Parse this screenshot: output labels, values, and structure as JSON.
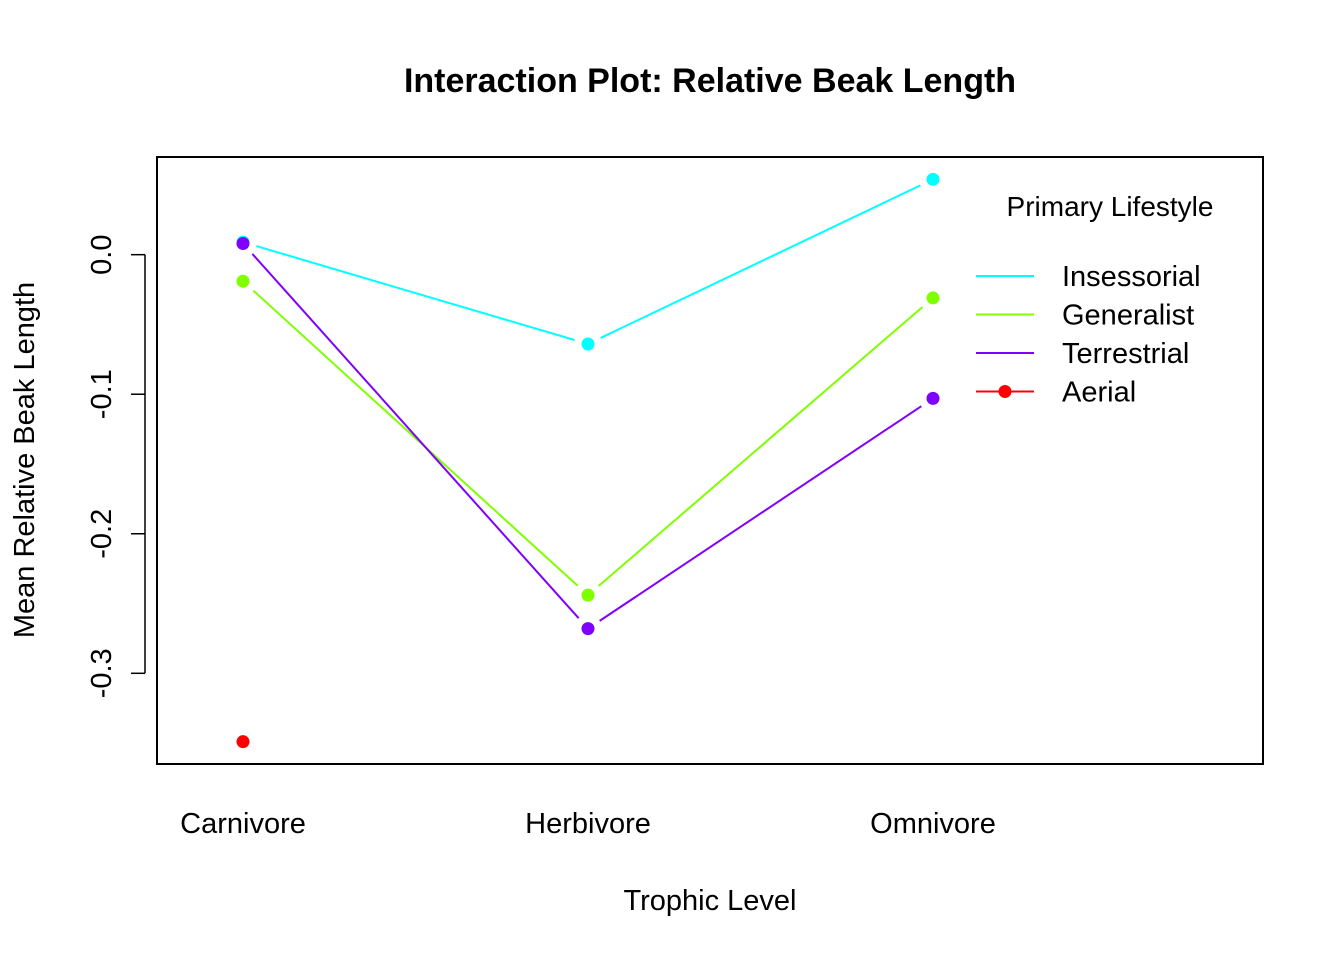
{
  "chart_data": {
    "type": "line",
    "title": "Interaction Plot: Relative Beak Length",
    "xlabel": "Trophic Level",
    "ylabel": "Mean Relative Beak Length",
    "categories": [
      "Carnivore",
      "Herbivore",
      "Omnivore"
    ],
    "ylim": [
      -0.365,
      0.07
    ],
    "yticks": [
      0.0,
      -0.1,
      -0.2,
      -0.3
    ],
    "ytick_labels": [
      "0.0",
      "-0.1",
      "-0.2",
      "-0.3"
    ],
    "grid": false,
    "legend": {
      "title": "Primary Lifestyle",
      "placement": "top-right"
    },
    "series": [
      {
        "name": "Insessorial",
        "color": "#00FFFF",
        "values": [
          0.009,
          -0.064,
          0.054
        ]
      },
      {
        "name": "Generalist",
        "color": "#80FF00",
        "values": [
          -0.019,
          -0.244,
          -0.031
        ]
      },
      {
        "name": "Terrestrial",
        "color": "#8000FF",
        "values": [
          0.008,
          -0.268,
          -0.103
        ]
      },
      {
        "name": "Aerial",
        "color": "#FF0000",
        "values": [
          -0.349,
          null,
          null
        ]
      }
    ]
  }
}
